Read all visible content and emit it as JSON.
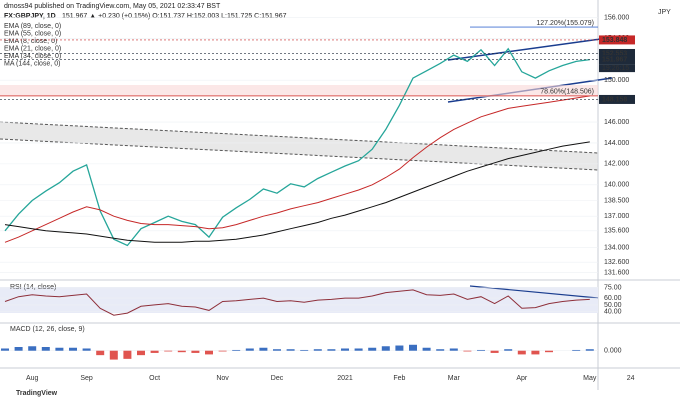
{
  "header": {
    "published": "dmoss94 published on TradingView.com, May 05, 2021 02:33:47 BST",
    "symbol": "FX:GBPJPY, 1D",
    "quote": "151.967 ▲ +0.230 (+0.15%) O:151.737 H:152.003 L:151.725 C:151.967"
  },
  "indicators": [
    "EMA (89, close, 0)",
    "EMA (55, close, 0)",
    "EMA (8, close, 0)",
    "EMA (21, close, 0)",
    "EMA (34, close, 0)",
    "MA (144, close, 0)"
  ],
  "currency": "JPY",
  "countdown": "19:26:15",
  "footer": "TradingView",
  "chart_data": [
    {
      "type": "line",
      "categories": [
        null,
        null,
        "Aug",
        null,
        null,
        null,
        "Sep",
        null,
        null,
        null,
        null,
        "Oct",
        null,
        null,
        null,
        null,
        "Nov",
        null,
        null,
        null,
        "Dec",
        null,
        null,
        null,
        null,
        "2021",
        null,
        null,
        null,
        "Feb",
        null,
        null,
        null,
        "Mar",
        null,
        null,
        null,
        null,
        "Apr",
        null,
        null,
        null,
        null,
        "May",
        null,
        null,
        "24"
      ],
      "series": [
        {
          "color": "#26a69a",
          "values": [
            135.6,
            137.2,
            138.5,
            139.4,
            140.2,
            141.3,
            141.9,
            137.5,
            134.8,
            134.2,
            135.8,
            136.4,
            137.0,
            136.5,
            136.2,
            135.0,
            136.9,
            137.8,
            138.6,
            139.6,
            139.2,
            140.1,
            139.8,
            140.6,
            141.2,
            141.8,
            142.3,
            143.4,
            145.3,
            147.6,
            150.2,
            150.9,
            151.6,
            152.4,
            151.8,
            152.9,
            151.4,
            153.0,
            150.8,
            150.2,
            150.9,
            151.4,
            151.8,
            151.967,
            null,
            null,
            null
          ]
        },
        {
          "name": "EMA (89, close, 0)",
          "color": "#c62828",
          "values": [
            134.5,
            135.0,
            135.6,
            136.2,
            136.8,
            137.4,
            137.9,
            137.6,
            137.0,
            136.6,
            136.3,
            136.2,
            136.2,
            136.1,
            136.0,
            135.8,
            135.9,
            136.2,
            136.6,
            137.0,
            137.3,
            137.7,
            138.0,
            138.3,
            138.7,
            139.1,
            139.5,
            140.0,
            140.7,
            141.5,
            142.6,
            143.6,
            144.5,
            145.3,
            145.9,
            146.5,
            146.9,
            147.3,
            147.5,
            147.7,
            147.9,
            148.1,
            148.3,
            148.5,
            null,
            null,
            null
          ]
        },
        {
          "name": "MA (144, close, 0)",
          "color": "#111111",
          "values": [
            136.2,
            136.0,
            135.8,
            135.6,
            135.5,
            135.4,
            135.3,
            135.1,
            134.9,
            134.7,
            134.6,
            134.5,
            134.5,
            134.5,
            134.6,
            134.6,
            134.7,
            134.8,
            135.0,
            135.2,
            135.5,
            135.8,
            136.1,
            136.4,
            136.8,
            137.1,
            137.5,
            137.9,
            138.3,
            138.8,
            139.3,
            139.8,
            140.3,
            140.8,
            141.3,
            141.7,
            142.1,
            142.5,
            142.8,
            143.1,
            143.4,
            143.7,
            143.9,
            144.1,
            null,
            null,
            null
          ]
        }
      ],
      "ylim": [
        130.9,
        156.9
      ],
      "yticks": [
        {
          "value": 156,
          "label": "156.000"
        },
        {
          "value": 154,
          "label": "154.000"
        },
        {
          "value": 150,
          "label": "150.000"
        },
        {
          "value": 146,
          "label": "146.000"
        },
        {
          "value": 144,
          "label": "144.000"
        },
        {
          "value": 142,
          "label": "142.000"
        },
        {
          "value": 140,
          "label": "140.000"
        },
        {
          "value": 138.5,
          "label": "138.500"
        },
        {
          "value": 137,
          "label": "137.000"
        },
        {
          "value": 135.6,
          "label": "135.600"
        },
        {
          "value": 134,
          "label": "134.000"
        },
        {
          "value": 132.6,
          "label": "132.600"
        },
        {
          "value": 131.6,
          "label": "131.600"
        }
      ],
      "levels": [
        {
          "value": 155.079,
          "label": "127.20%(155.079)",
          "color": "#3f6fd1"
        },
        {
          "value": 153.848,
          "label": "153.848",
          "color": "#c62828"
        },
        {
          "value": 152.553,
          "label": "152.553",
          "color": "#1e2a3a"
        },
        {
          "value": 151.967,
          "label": "151.967",
          "color": "#1e2a3a"
        },
        {
          "value": 148.506,
          "label": "78.60%(148.506)",
          "color": "#d9534f"
        },
        {
          "value": 148.158,
          "label": "148.158",
          "color": "#1e2a3a"
        }
      ]
    },
    {
      "type": "line",
      "title": "RSI (14, close)",
      "series": [
        {
          "color": "#8e2f3a",
          "values": [
            55,
            62,
            65,
            63,
            62,
            64,
            66,
            45,
            35,
            38,
            48,
            50,
            52,
            48,
            47,
            42,
            55,
            56,
            58,
            60,
            55,
            56,
            54,
            57,
            58,
            60,
            60,
            63,
            68,
            70,
            72,
            65,
            64,
            66,
            58,
            62,
            52,
            63,
            45,
            46,
            52,
            55,
            57,
            58
          ]
        }
      ],
      "ylim": [
        25,
        85
      ],
      "yticks": [
        {
          "value": 75,
          "label": "75.00"
        },
        {
          "value": 60,
          "label": "60.00"
        },
        {
          "value": 50,
          "label": "50.00"
        },
        {
          "value": 40,
          "label": "40.00"
        }
      ]
    },
    {
      "type": "bar",
      "title": "MACD (12, 26, close, 9)",
      "values": [
        0.3,
        0.5,
        0.6,
        0.5,
        0.4,
        0.4,
        0.3,
        -0.6,
        -1.2,
        -1.1,
        -0.6,
        -0.3,
        -0.1,
        -0.2,
        -0.3,
        -0.5,
        -0.1,
        0.1,
        0.3,
        0.4,
        0.2,
        0.2,
        0.1,
        0.2,
        0.2,
        0.3,
        0.3,
        0.4,
        0.6,
        0.7,
        0.8,
        0.4,
        0.2,
        0.3,
        -0.1,
        0.1,
        -0.3,
        0.2,
        -0.5,
        -0.5,
        -0.2,
        0.0,
        0.1,
        0.2
      ],
      "colors": {
        "positive": "#3b6fc1",
        "negative": "#e0544f"
      },
      "ylim": [
        -2.2,
        3.2
      ],
      "yticks": [
        {
          "value": 0,
          "label": "0.000"
        }
      ]
    }
  ]
}
